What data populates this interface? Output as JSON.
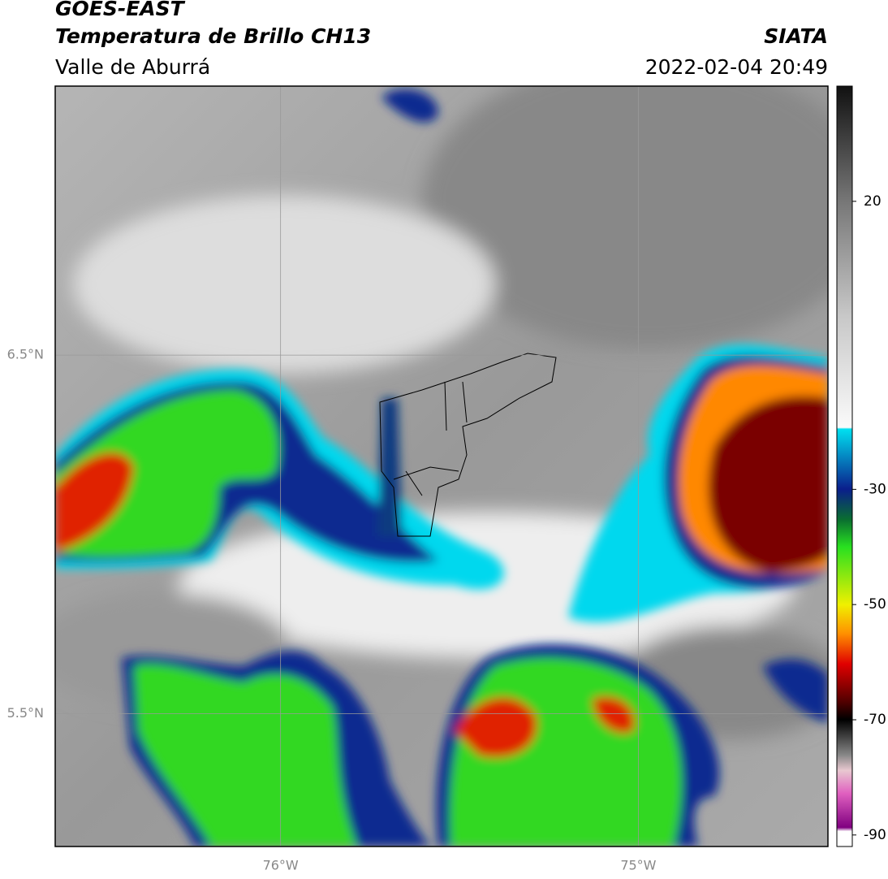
{
  "header": {
    "title": "GOES-EAST",
    "subtitle": "Temperatura de Brillo CH13",
    "region": "Valle de Aburrá",
    "source": "SIATA",
    "datetime": "2022-02-04 20:49"
  },
  "map": {
    "xlim": [
      -76.63,
      -74.47
    ],
    "ylim": [
      5.13,
      7.25
    ],
    "xticks": [
      {
        "value": -76,
        "label": "76°W"
      },
      {
        "value": -75,
        "label": "75°W"
      }
    ],
    "yticks": [
      {
        "value": 6.5,
        "label": "6.5°N"
      },
      {
        "value": 5.5,
        "label": "5.5°N"
      }
    ],
    "grid": true
  },
  "colorbar": {
    "lim": [
      -92,
      40
    ],
    "ticks": [
      20,
      -30,
      -50,
      -70,
      -90
    ]
  }
}
